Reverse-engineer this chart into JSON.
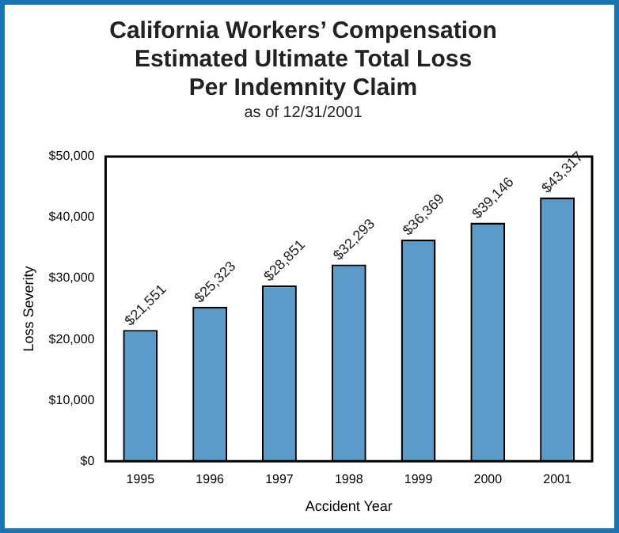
{
  "chart_data": {
    "type": "bar",
    "title": "California Workers’ Compensation\nEstimated Ultimate Total Loss\nPer Indemnity Claim",
    "subtitle": "as of 12/31/2001",
    "xlabel": "Accident Year",
    "ylabel": "Loss Severity",
    "categories": [
      "1995",
      "1996",
      "1997",
      "1998",
      "1999",
      "2000",
      "2001"
    ],
    "values": [
      21551,
      25323,
      28851,
      32293,
      36369,
      39146,
      43317
    ],
    "value_labels": [
      "$21,551",
      "$25,323",
      "$28,851",
      "$32,293",
      "$36,369",
      "$39,146",
      "$43,317"
    ],
    "color": "#5b9bc9",
    "ylim": [
      0,
      50000
    ],
    "yticks": [
      {
        "value": 0,
        "label": "$0"
      },
      {
        "value": 10000,
        "label": "$10,000"
      },
      {
        "value": 20000,
        "label": "$20,000"
      },
      {
        "value": 30000,
        "label": "$30,000"
      },
      {
        "value": 40000,
        "label": "$40,000"
      },
      {
        "value": 50000,
        "label": "$50,000"
      }
    ],
    "grid": false,
    "legend": false
  }
}
